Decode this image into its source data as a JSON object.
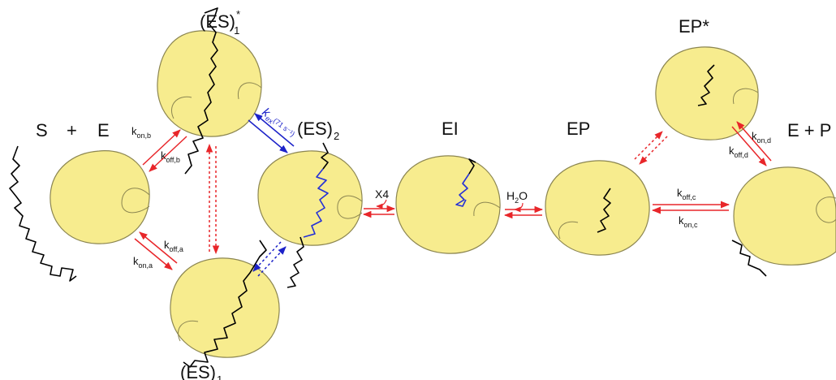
{
  "species": {
    "S": "S",
    "plus": "+",
    "E": "E",
    "ES1_star": {
      "main": "(ES)",
      "sub": "1",
      "sup": "*"
    },
    "ES2": {
      "main": "(ES)",
      "sub": "2"
    },
    "ES1": {
      "main": "(ES)",
      "sub": "1"
    },
    "EI": "EI",
    "EP": "EP",
    "EP_star": "EP*",
    "E_plus_P": "E + P"
  },
  "rates": {
    "kon_b": {
      "main": "k",
      "sub": "on,b"
    },
    "koff_b": {
      "main": "k",
      "sub": "off,b"
    },
    "kon_a": {
      "main": "k",
      "sub": "on,a"
    },
    "koff_a": {
      "main": "k",
      "sub": "off,a"
    },
    "kex": {
      "main": "k",
      "sub": "ex",
      "value": "(71 s⁻¹)"
    },
    "x4": "X4",
    "h2o": {
      "main": "H",
      "sub": "2",
      "tail": "O"
    },
    "koff_c": {
      "main": "k",
      "sub": "off,c"
    },
    "kon_c": {
      "main": "k",
      "sub": "on,c"
    },
    "kon_d": {
      "main": "k",
      "sub": "on,d"
    },
    "koff_d": {
      "main": "k",
      "sub": "off,d"
    }
  },
  "colors": {
    "enzyme_fill": "#f7ec8e",
    "arrow_red": "#e8262a",
    "arrow_blue": "#1c22c9",
    "substrate_bound_blue": "#2430d6",
    "chain_black": "#000000"
  }
}
